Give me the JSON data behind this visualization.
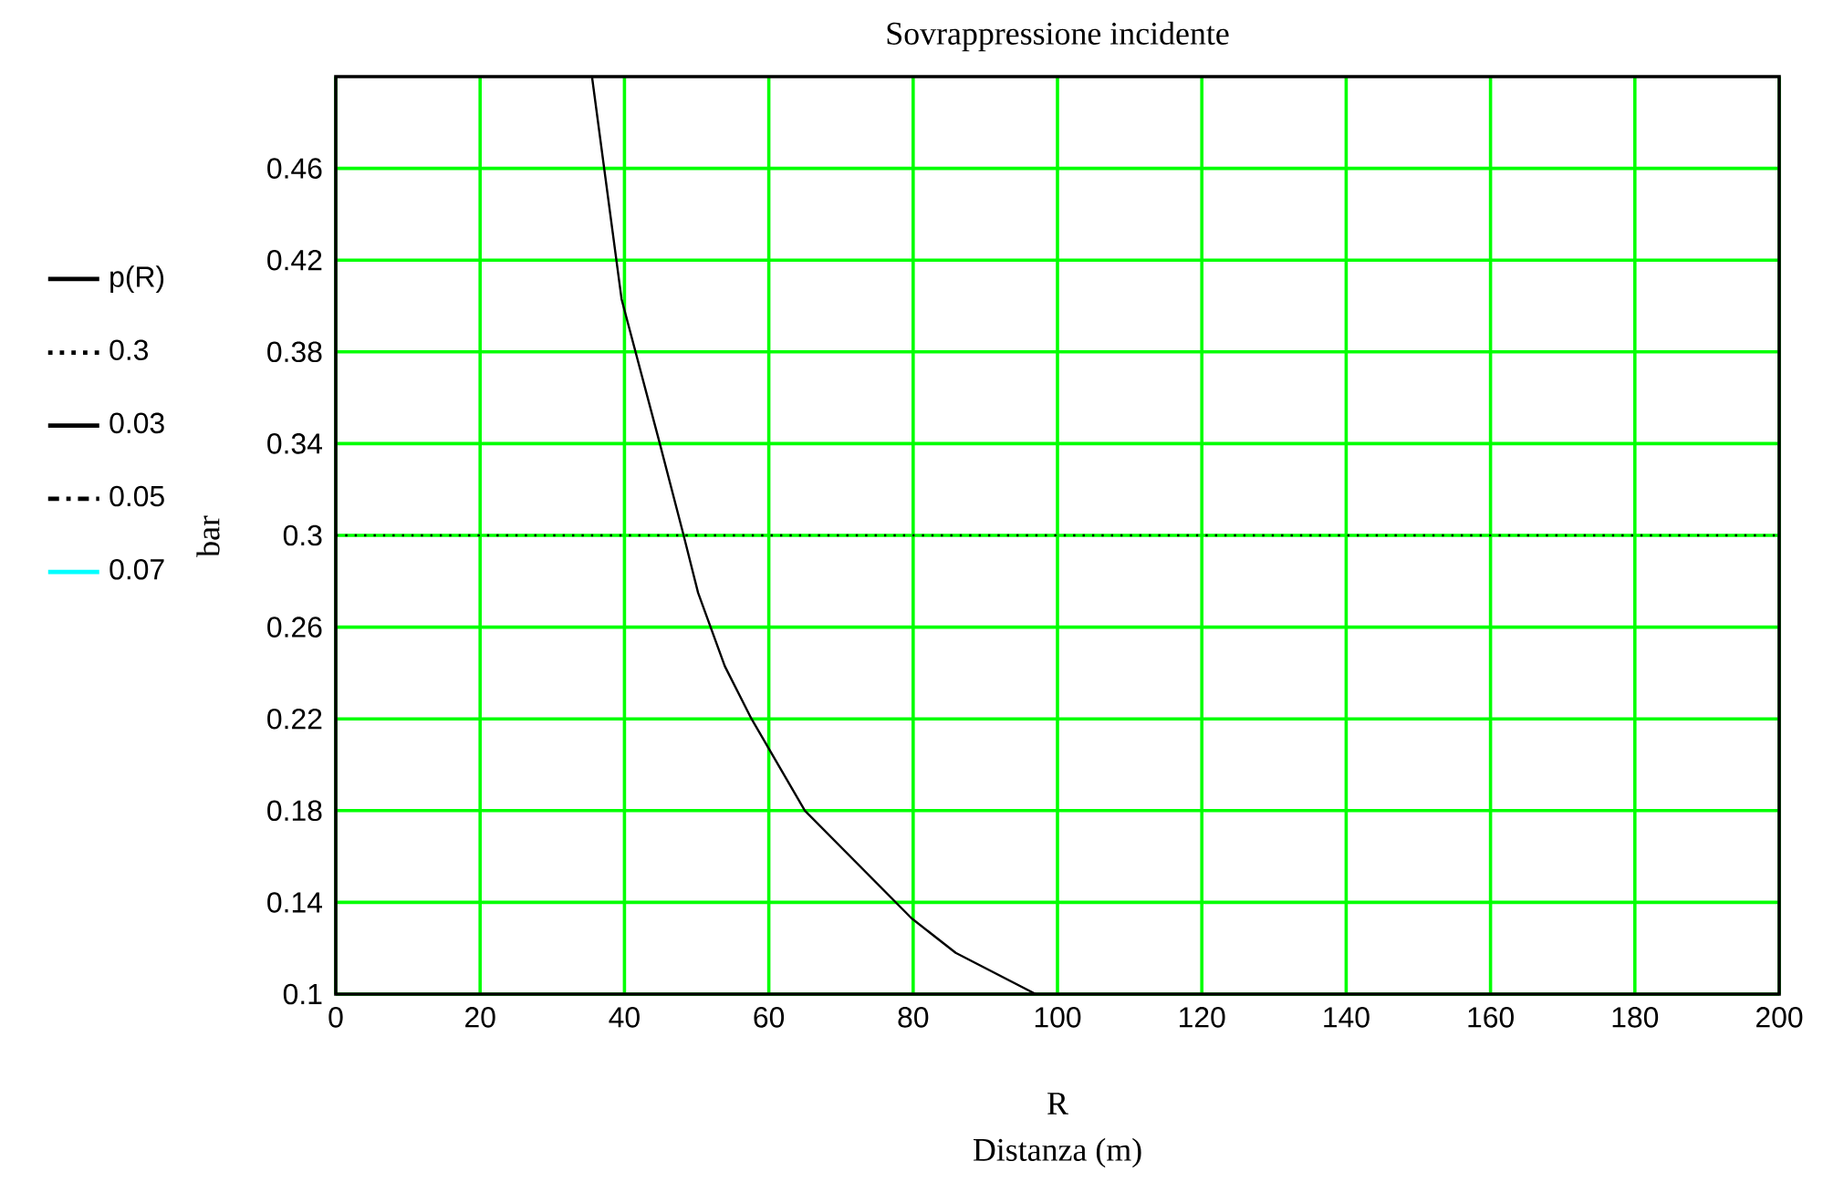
{
  "chart_data": {
    "type": "line",
    "title": "Sovrappressione incidente",
    "xlabel": "R",
    "ylabel": "bar",
    "annotations": [
      "Distanza (m)"
    ],
    "series": [
      {
        "name": "p(R)",
        "color": "#000000",
        "line_style": "solid",
        "x": [
          35.5,
          39.6,
          44.9,
          48.2,
          50.2,
          53.9,
          57.6,
          65.0,
          79.8,
          85.9,
          97.0
        ],
        "values": [
          0.5,
          0.403,
          0.34,
          0.3,
          0.275,
          0.243,
          0.22,
          0.18,
          0.133,
          0.118,
          0.1
        ]
      },
      {
        "name": "0.3",
        "color": "#000000",
        "line_style": "dotted",
        "x": [
          0,
          200
        ],
        "values": [
          0.3,
          0.3
        ]
      },
      {
        "name": "0.03",
        "color": "#000000",
        "line_style": "solid",
        "values": [
          null
        ]
      },
      {
        "name": "0.05",
        "color": "#000000",
        "line_style": "dashed",
        "values": [
          null
        ]
      },
      {
        "name": "0.07",
        "color": "#00ffff",
        "line_style": "solid",
        "values": [
          null
        ]
      }
    ],
    "xlim": [
      0,
      200
    ],
    "ylim": [
      0.1,
      0.5
    ],
    "xticks": [
      0,
      20,
      40,
      60,
      80,
      100,
      120,
      140,
      160,
      180,
      200
    ],
    "yticks": [
      0.1,
      0.14,
      0.18,
      0.22,
      0.26,
      0.3,
      0.34,
      0.38,
      0.42,
      0.46
    ],
    "grid": true,
    "legend": "left"
  }
}
